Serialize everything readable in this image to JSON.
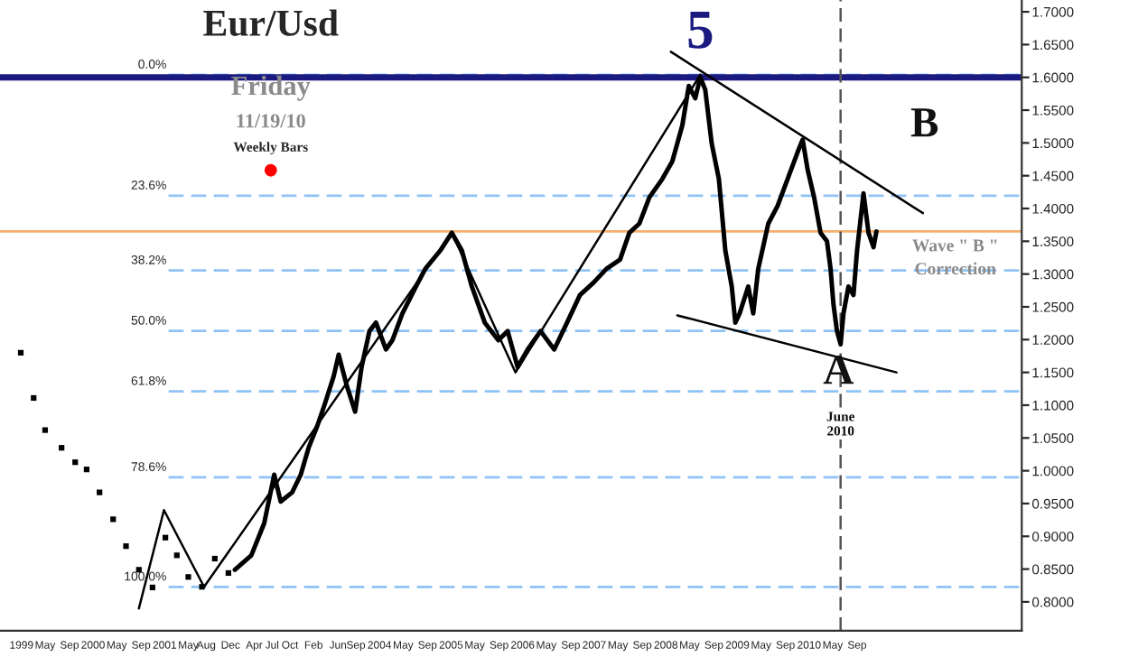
{
  "chart_data": {
    "type": "line",
    "title": "Eur/Usd",
    "subtitle": "Friday",
    "annotations": [
      "11/19/10",
      "Weekly Bars",
      "B",
      "Wave \" B \"\nCorrection",
      "0.0%",
      "23.6%",
      "38.2%",
      "50.0%",
      "61.8%",
      "78.6%",
      "100.0%",
      {
        "text": "5",
        "x": 2008.48,
        "y": 1.604
      },
      {
        "text": "A",
        "x": 2010.41,
        "y": 1.193
      },
      {
        "text": "June\n2010",
        "x": 2010.44,
        "y": 1.07
      }
    ],
    "series": [
      {
        "type": "scatter",
        "marker": "square",
        "color": "#000000",
        "x": [
          1998.99,
          1999.17,
          1999.33,
          1999.56,
          1999.75,
          1999.91,
          2000.09,
          2000.28,
          2000.46,
          2000.64,
          2000.83,
          2001.01,
          2001.17,
          2001.33,
          2001.52,
          2001.7,
          2001.89
        ],
        "values": [
          1.18,
          1.111,
          1.062,
          1.035,
          1.013,
          1.002,
          0.967,
          0.926,
          0.885,
          0.849,
          0.822,
          0.898,
          0.871,
          0.838,
          0.823,
          0.866,
          0.844
        ]
      },
      {
        "color": "#000000",
        "line_style": "solid",
        "x": [
          2001.98,
          2002.21,
          2002.39,
          2002.53,
          2002.62,
          2002.78,
          2002.9,
          2003.01,
          2003.13,
          2003.24,
          2003.36,
          2003.43,
          2003.54,
          2003.66,
          2003.75,
          2003.86,
          2003.95,
          2004.09,
          2004.18,
          2004.32,
          2004.51,
          2004.64,
          2004.85,
          2005.01,
          2005.15,
          2005.29,
          2005.47,
          2005.66,
          2005.79,
          2005.93,
          2006.07,
          2006.25,
          2006.44,
          2006.62,
          2006.8,
          2006.99,
          2007.17,
          2007.36,
          2007.49,
          2007.63,
          2007.77,
          2007.95,
          2008.09,
          2008.23,
          2008.32,
          2008.41,
          2008.48,
          2008.55,
          2008.64,
          2008.74,
          2008.83,
          2008.92,
          2008.97,
          2009.03,
          2009.15,
          2009.22,
          2009.29,
          2009.43,
          2009.56,
          2009.7,
          2009.84,
          2009.91,
          2009.98,
          2010.07,
          2010.16,
          2010.25,
          2010.3,
          2010.34,
          2010.39,
          2010.44,
          2010.48,
          2010.55,
          2010.62,
          2010.67,
          2010.76,
          2010.83,
          2010.9,
          2010.94
        ],
        "values": [
          0.849,
          0.871,
          0.92,
          0.994,
          0.953,
          0.967,
          0.994,
          1.035,
          1.068,
          1.103,
          1.144,
          1.177,
          1.131,
          1.09,
          1.158,
          1.213,
          1.226,
          1.185,
          1.199,
          1.24,
          1.281,
          1.308,
          1.336,
          1.363,
          1.336,
          1.281,
          1.226,
          1.199,
          1.213,
          1.158,
          1.185,
          1.213,
          1.185,
          1.226,
          1.268,
          1.287,
          1.308,
          1.322,
          1.363,
          1.377,
          1.417,
          1.445,
          1.472,
          1.527,
          1.587,
          1.568,
          1.6,
          1.581,
          1.499,
          1.445,
          1.336,
          1.281,
          1.226,
          1.24,
          1.281,
          1.24,
          1.308,
          1.377,
          1.404,
          1.445,
          1.486,
          1.505,
          1.459,
          1.417,
          1.363,
          1.35,
          1.308,
          1.254,
          1.213,
          1.193,
          1.24,
          1.281,
          1.268,
          1.336,
          1.423,
          1.363,
          1.341,
          1.365
        ]
      },
      {
        "color": "#000000",
        "line_style": "solid",
        "x": [
          2000.64,
          2000.99,
          2001.55,
          2005.01,
          2005.9,
          2008.48
        ],
        "values": [
          0.79,
          0.94,
          0.823,
          1.363,
          1.15,
          1.604
        ]
      },
      {
        "color": "#000000",
        "line_style": "solid",
        "x": [
          2008.07,
          2011.59
        ],
        "values": [
          1.639,
          1.393
        ]
      },
      {
        "color": "#000000",
        "line_style": "solid",
        "x": [
          2008.16,
          2011.22
        ],
        "values": [
          1.237,
          1.15
        ]
      }
    ],
    "ref_lines": [
      {
        "axis": "y",
        "value": 1.604,
        "label": null,
        "color": "#8fc3f5",
        "line_style": "dashed"
      },
      {
        "axis": "y",
        "value": 1.6,
        "label": null,
        "color": "#1a1a80",
        "line_style": "solid"
      },
      {
        "axis": "y",
        "value": 1.4195,
        "label": null,
        "color": "#8fc3f5",
        "line_style": "dashed"
      },
      {
        "axis": "y",
        "value": 1.3055,
        "label": null,
        "color": "#8fc3f5",
        "line_style": "dashed"
      },
      {
        "axis": "y",
        "value": 1.2133,
        "label": null,
        "color": "#8fc3f5",
        "line_style": "dashed"
      },
      {
        "axis": "y",
        "value": 1.1211,
        "label": null,
        "color": "#8fc3f5",
        "line_style": "dashed"
      },
      {
        "axis": "y",
        "value": 0.9899,
        "label": null,
        "color": "#8fc3f5",
        "line_style": "dashed"
      },
      {
        "axis": "y",
        "value": 0.8228,
        "label": null,
        "color": "#8fc3f5",
        "line_style": "dashed"
      },
      {
        "axis": "y",
        "value": 1.365,
        "label": null,
        "color": "#f5b070",
        "line_style": "solid"
      },
      {
        "axis": "x",
        "value": 2010.44,
        "label": null,
        "color": "#555555",
        "line_style": "dashed"
      }
    ],
    "xlim": [
      1998.7,
      2012.97
    ],
    "ylim": [
      0.756,
      1.718
    ],
    "xticks": [
      {
        "value": 1999.0,
        "label": "1999"
      },
      {
        "value": 1999.33,
        "label": "May"
      },
      {
        "value": 1999.67,
        "label": "Sep"
      },
      2000,
      {
        "value": 2000.33,
        "label": "May"
      },
      {
        "value": 2000.67,
        "label": "Sep"
      },
      2001,
      {
        "value": 2001.33,
        "label": "May"
      },
      {
        "value": 2001.58,
        "label": "Aug"
      },
      {
        "value": 2001.92,
        "label": "Dec"
      },
      {
        "value": 2002.25,
        "label": "Apr"
      },
      {
        "value": 2002.5,
        "label": "Jul"
      },
      {
        "value": 2002.75,
        "label": "Oct"
      },
      {
        "value": 2003.08,
        "label": "Feb"
      },
      {
        "value": 2003.42,
        "label": "Jun"
      },
      {
        "value": 2003.67,
        "label": "Sep"
      },
      2004,
      {
        "value": 2004.33,
        "label": "May"
      },
      {
        "value": 2004.67,
        "label": "Sep"
      },
      2005,
      {
        "value": 2005.33,
        "label": "May"
      },
      {
        "value": 2005.67,
        "label": "Sep"
      },
      2006,
      {
        "value": 2006.33,
        "label": "May"
      },
      {
        "value": 2006.67,
        "label": "Sep"
      },
      2007,
      {
        "value": 2007.33,
        "label": "May"
      },
      {
        "value": 2007.67,
        "label": "Sep"
      },
      2008,
      {
        "value": 2008.33,
        "label": "May"
      },
      {
        "value": 2008.67,
        "label": "Sep"
      },
      2009,
      {
        "value": 2009.33,
        "label": "May"
      },
      {
        "value": 2009.67,
        "label": "Sep"
      },
      2010,
      {
        "value": 2010.33,
        "label": "May"
      },
      {
        "value": 2010.67,
        "label": "Sep"
      }
    ],
    "yticks": [
      {
        "value": 0.8,
        "label": "0.8000"
      },
      {
        "value": 0.85,
        "label": "0.8500"
      },
      {
        "value": 0.9,
        "label": "0.9000"
      },
      {
        "value": 0.95,
        "label": "0.9500"
      },
      {
        "value": 1.0,
        "label": "1.0000"
      },
      {
        "value": 1.05,
        "label": "1.0500"
      },
      {
        "value": 1.1,
        "label": "1.1000"
      },
      {
        "value": 1.15,
        "label": "1.1500"
      },
      {
        "value": 1.2,
        "label": "1.2000"
      },
      {
        "value": 1.25,
        "label": "1.2500"
      },
      {
        "value": 1.3,
        "label": "1.3000"
      },
      {
        "value": 1.35,
        "label": "1.3500"
      },
      {
        "value": 1.4,
        "label": "1.4000"
      },
      {
        "value": 1.45,
        "label": "1.4500"
      },
      {
        "value": 1.5,
        "label": "1.5000"
      },
      {
        "value": 1.55,
        "label": "1.5500"
      },
      {
        "value": 1.6,
        "label": "1.6000"
      },
      {
        "value": 1.65,
        "label": "1.6500"
      },
      {
        "value": 1.7,
        "label": "1.7000"
      }
    ],
    "grid": false,
    "legend": false
  }
}
